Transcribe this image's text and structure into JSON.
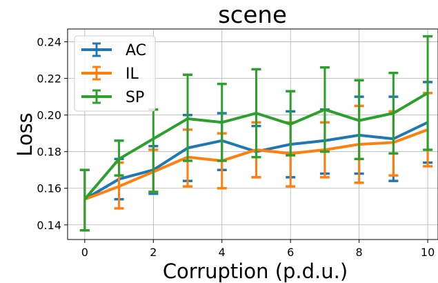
{
  "chart_data": {
    "type": "line",
    "title": "scene",
    "xlabel": "Corruption (p.d.u.)",
    "ylabel": "Loss",
    "x": [
      0,
      1,
      2,
      3,
      4,
      5,
      6,
      7,
      8,
      9,
      10
    ],
    "xlim": [
      -0.5,
      10.3
    ],
    "ylim": [
      0.132,
      0.247
    ],
    "xticks": [
      0,
      2,
      4,
      6,
      8,
      10
    ],
    "yticks": [
      0.14,
      0.16,
      0.18,
      0.2,
      0.22,
      0.24
    ],
    "ytick_labels": [
      "0.14",
      "0.16",
      "0.18",
      "0.20",
      "0.22",
      "0.24"
    ],
    "grid": true,
    "legend_position": "top-left",
    "series": [
      {
        "name": "AC",
        "color": "#1f77b4",
        "values": [
          0.154,
          0.165,
          0.17,
          0.182,
          0.186,
          0.18,
          0.184,
          0.186,
          0.189,
          0.187,
          0.196
        ],
        "err_low": [
          0.137,
          0.154,
          0.157,
          0.164,
          0.17,
          0.166,
          0.166,
          0.168,
          0.168,
          0.164,
          0.174
        ],
        "err_high": [
          0.17,
          0.176,
          0.183,
          0.2,
          0.201,
          0.194,
          0.202,
          0.203,
          0.21,
          0.21,
          0.218
        ]
      },
      {
        "name": "IL",
        "color": "#ff7f0e",
        "values": [
          0.154,
          0.161,
          0.169,
          0.177,
          0.175,
          0.181,
          0.179,
          0.181,
          0.184,
          0.185,
          0.192
        ],
        "err_low": [
          0.137,
          0.149,
          0.158,
          0.161,
          0.16,
          0.166,
          0.161,
          0.166,
          0.163,
          0.167,
          0.172
        ],
        "err_high": [
          0.17,
          0.174,
          0.181,
          0.192,
          0.19,
          0.196,
          0.196,
          0.196,
          0.205,
          0.202,
          0.212
        ]
      },
      {
        "name": "SP",
        "color": "#2ca02c",
        "values": [
          0.154,
          0.176,
          0.187,
          0.198,
          0.196,
          0.201,
          0.195,
          0.203,
          0.197,
          0.201,
          0.212
        ],
        "err_low": [
          0.137,
          0.167,
          0.158,
          0.175,
          0.175,
          0.177,
          0.178,
          0.18,
          0.176,
          0.179,
          0.181
        ],
        "err_high": [
          0.17,
          0.186,
          0.203,
          0.222,
          0.217,
          0.225,
          0.213,
          0.226,
          0.219,
          0.223,
          0.243
        ]
      }
    ]
  }
}
